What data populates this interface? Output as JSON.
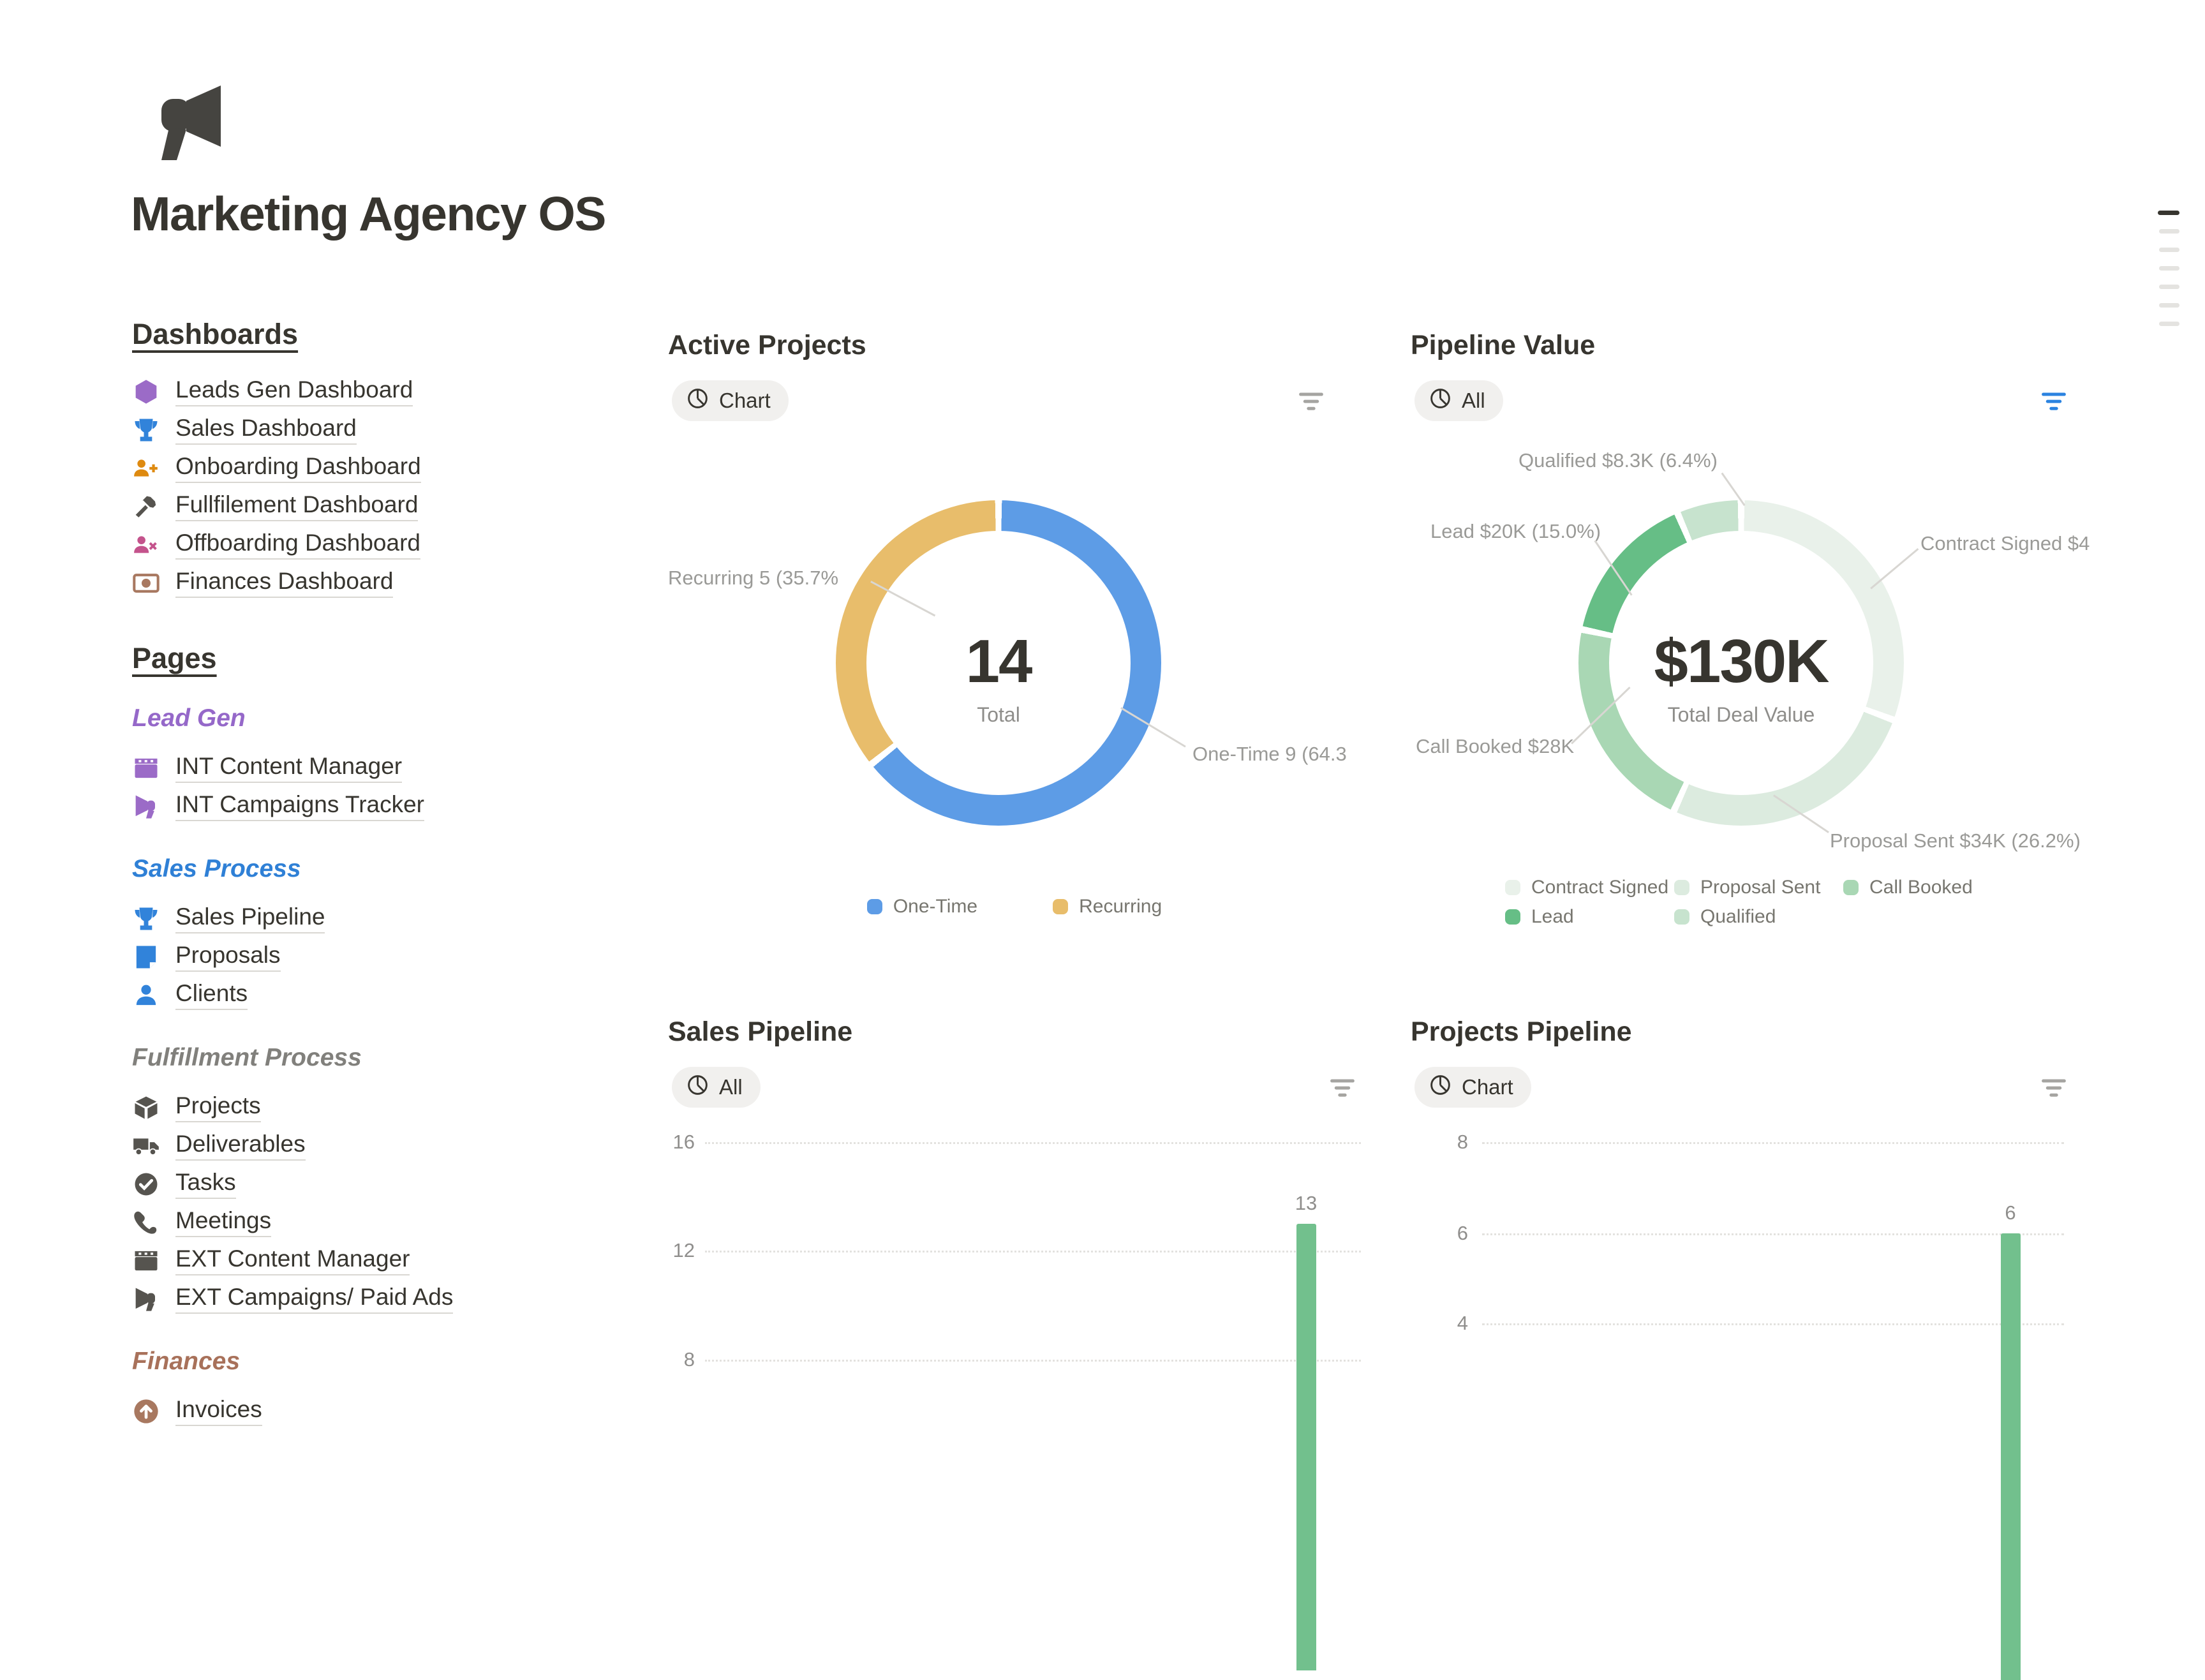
{
  "page": {
    "title": "Marketing Agency OS",
    "icon": "megaphone"
  },
  "outline": {
    "marks": 7
  },
  "sidebar": {
    "dashboards": {
      "heading": "Dashboards",
      "items": [
        {
          "label": "Leads Gen Dashboard",
          "icon": "hexagon-icon",
          "color": "#9B6BC7"
        },
        {
          "label": "Sales Dashboard",
          "icon": "trophy-icon",
          "color": "#3183DA"
        },
        {
          "label": "Onboarding Dashboard",
          "icon": "person-plus-icon",
          "color": "#DE8A10"
        },
        {
          "label": "Fullfilement Dashboard",
          "icon": "hammer-icon",
          "color": "#56544F"
        },
        {
          "label": "Offboarding Dashboard",
          "icon": "person-x-icon",
          "color": "#C4538C"
        },
        {
          "label": "Finances Dashboard",
          "icon": "banknote-icon",
          "color": "#A87860"
        }
      ]
    },
    "pages": {
      "heading": "Pages",
      "groups": [
        {
          "label": "Lead Gen",
          "color": "#9568C9",
          "items": [
            {
              "label": "INT Content Manager",
              "icon": "clapperboard-icon",
              "color": "#9B6BC7"
            },
            {
              "label": "INT Campaigns Tracker",
              "icon": "megaphone-icon",
              "color": "#9B6BC7"
            }
          ]
        },
        {
          "label": "Sales Process",
          "color": "#2F80D6",
          "items": [
            {
              "label": "Sales Pipeline",
              "icon": "trophy-icon",
              "color": "#3183DA"
            },
            {
              "label": "Proposals",
              "icon": "document-icon",
              "color": "#3183DA"
            },
            {
              "label": "Clients",
              "icon": "person-icon",
              "color": "#3183DA"
            }
          ]
        },
        {
          "label": "Fulfillment Process",
          "color": "#81807C",
          "items": [
            {
              "label": "Projects",
              "icon": "box-icon",
              "color": "#56544F"
            },
            {
              "label": "Deliverables",
              "icon": "truck-icon",
              "color": "#56544F"
            },
            {
              "label": "Tasks",
              "icon": "check-circle-icon",
              "color": "#56544F"
            },
            {
              "label": "Meetings",
              "icon": "phone-icon",
              "color": "#56544F"
            },
            {
              "label": "EXT Content Manager",
              "icon": "clapperboard-icon",
              "color": "#56544F"
            },
            {
              "label": "EXT Campaigns/ Paid Ads",
              "icon": "megaphone-icon",
              "color": "#56544F"
            }
          ]
        },
        {
          "label": "Finances",
          "color": "#A8715A",
          "items": [
            {
              "label": "Invoices",
              "icon": "arrow-up-circle-icon",
              "color": "#A87860"
            }
          ]
        }
      ]
    }
  },
  "widgets": {
    "active_projects": {
      "title": "Active Projects",
      "chip": {
        "icon": "pie-chart-icon",
        "label": "Chart"
      },
      "filter_icon_color": "#A5A4A1",
      "chart_data": {
        "type": "donut",
        "center": {
          "value": "14",
          "label": "Total"
        },
        "series": [
          {
            "name": "One-Time",
            "value": 9,
            "pct": 64.3,
            "arc_pct": 64.3,
            "color": "#5D9CE6"
          },
          {
            "name": "Recurring",
            "value": 5,
            "pct": 35.7,
            "arc_pct": 35.7,
            "color": "#E8BD6B"
          }
        ],
        "callouts": {
          "recurring": "Recurring 5 (35.7%",
          "one_time": "One-Time 9 (64.3"
        }
      }
    },
    "pipeline_value": {
      "title": "Pipeline Value",
      "chip": {
        "icon": "pie-chart-icon",
        "label": "All"
      },
      "filter_icon_color": "#2B83E0",
      "chart_data": {
        "type": "donut",
        "center": {
          "value": "$130K",
          "label": "Total Deal Value"
        },
        "series": [
          {
            "name": "Contract Signed",
            "callout": "Contract Signed $4",
            "arc_pct": 30.7,
            "color": "#E9F1EA"
          },
          {
            "name": "Proposal Sent",
            "callout": "Proposal Sent  $34K (26.2%)",
            "amount": "$34K",
            "pct": 26.2,
            "arc_pct": 26.1,
            "color": "#DCEBDF"
          },
          {
            "name": "Call Booked",
            "callout": "Call Booked  $28K",
            "amount": "$28K",
            "arc_pct": 21.5,
            "color": "#A9D7B4"
          },
          {
            "name": "Lead",
            "callout": "Lead  $20K (15.0%)",
            "amount": "$20K",
            "pct": 15.0,
            "arc_pct": 15.3,
            "color": "#66BE86"
          },
          {
            "name": "Qualified",
            "callout": "Qualified  $8.3K (6.4%)",
            "amount": "$8.3K",
            "pct": 6.4,
            "arc_pct": 6.4,
            "color": "#C7E3CE"
          }
        ]
      }
    },
    "sales_pipeline": {
      "title": "Sales Pipeline",
      "chip": {
        "icon": "pie-chart-icon",
        "label": "All"
      },
      "filter_icon_color": "#A5A4A1",
      "chart_data": {
        "type": "bar",
        "yticks": [
          16,
          12,
          8
        ],
        "bars": [
          {
            "label": "13",
            "value": 13
          }
        ],
        "bar_color": "#72C08D",
        "grid": "dotted"
      }
    },
    "projects_pipeline": {
      "title": "Projects Pipeline",
      "chip": {
        "icon": "pie-chart-icon",
        "label": "Chart"
      },
      "filter_icon_color": "#A5A4A1",
      "chart_data": {
        "type": "bar",
        "yticks": [
          8,
          6,
          4
        ],
        "bars": [
          {
            "label": "6",
            "value": 6
          }
        ],
        "bar_color": "#72C08D",
        "grid": "dotted"
      }
    }
  }
}
